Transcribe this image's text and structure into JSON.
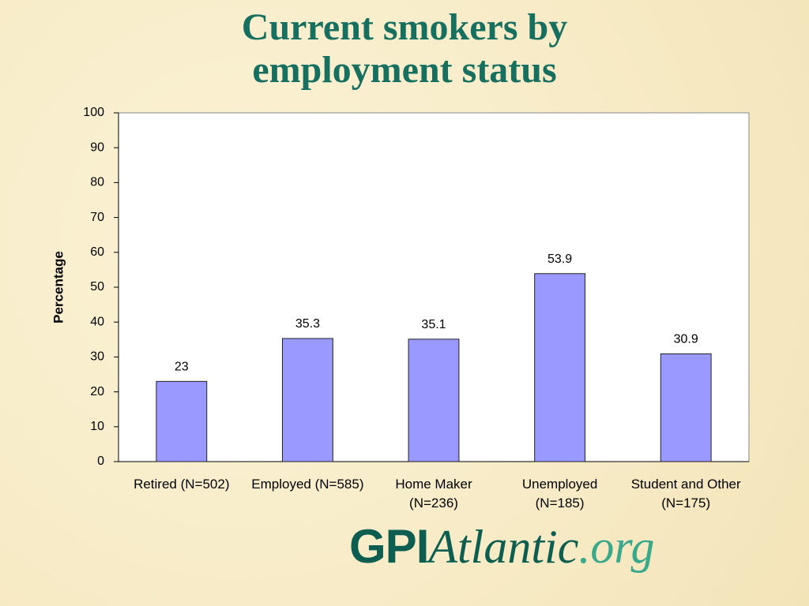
{
  "chart_data": {
    "type": "bar",
    "title": "Current smokers by employment status",
    "y_label": "Percentage",
    "categories": [
      "Retired (N=502)",
      "Employed (N=585)",
      "Home Maker (N=236)",
      "Unemployed (N=185)",
      "Student and Other (N=175)"
    ],
    "values": [
      23,
      35.3,
      35.1,
      53.9,
      30.9
    ],
    "color": "#9999ff",
    "ylim": [
      0,
      100
    ],
    "yticks": [
      0,
      10,
      20,
      30,
      40,
      50,
      60,
      70,
      80,
      90,
      100
    ],
    "grid": false
  },
  "logo": {
    "part1": "GPI",
    "part2": "Atlantic",
    "part3": ".org"
  }
}
